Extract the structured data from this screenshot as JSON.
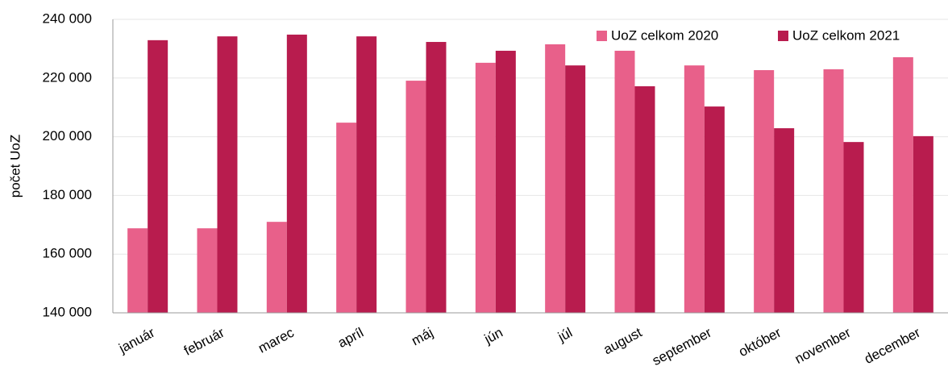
{
  "chart_data": {
    "type": "bar",
    "ylabel": "počet UoZ",
    "categories": [
      "január",
      "február",
      "marec",
      "apríl",
      "máj",
      "jún",
      "júl",
      "august",
      "september",
      "október",
      "november",
      "december"
    ],
    "series": [
      {
        "name": "UoZ celkom 2020",
        "color": "#e8608a",
        "values": [
          168800,
          168800,
          171000,
          204800,
          219100,
          225200,
          231500,
          229300,
          224300,
          222700,
          223000,
          227100
        ]
      },
      {
        "name": "UoZ celkom 2021",
        "color": "#b81c4e",
        "values": [
          232900,
          234200,
          234800,
          234200,
          232300,
          229300,
          224300,
          217200,
          210300,
          202900,
          198200,
          200200
        ]
      }
    ],
    "ylim": [
      140000,
      240000
    ],
    "yticks": [
      {
        "value": 140000,
        "label": "140 000"
      },
      {
        "value": 160000,
        "label": "160 000"
      },
      {
        "value": 180000,
        "label": "180 000"
      },
      {
        "value": 200000,
        "label": "200 000"
      },
      {
        "value": 220000,
        "label": "220 000"
      },
      {
        "value": 240000,
        "label": "240 000"
      }
    ],
    "grid": true,
    "legend": "top-right"
  }
}
